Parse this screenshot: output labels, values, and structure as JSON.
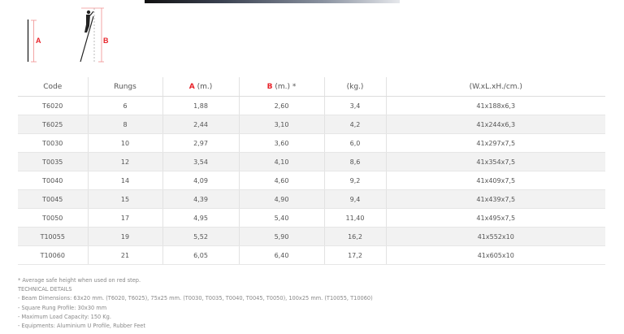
{
  "diagram": {
    "label_a": "A",
    "label_b": "B"
  },
  "table": {
    "headers": {
      "code": "Code",
      "rungs": "Rungs",
      "a_letter": "A",
      "a_unit": " (m.)",
      "b_letter": "B",
      "b_unit": " (m.) *",
      "weight": "(kg.)",
      "dims": "(W.xL.xH./cm.)"
    },
    "rows": [
      [
        "T6020",
        "6",
        "1,88",
        "2,60",
        "3,4",
        "41x188x6,3"
      ],
      [
        "T6025",
        "8",
        "2,44",
        "3,10",
        "4,2",
        "41x244x6,3"
      ],
      [
        "T0030",
        "10",
        "2,97",
        "3,60",
        "6,0",
        "41x297x7,5"
      ],
      [
        "T0035",
        "12",
        "3,54",
        "4,10",
        "8,6",
        "41x354x7,5"
      ],
      [
        "T0040",
        "14",
        "4,09",
        "4,60",
        "9,2",
        "41x409x7,5"
      ],
      [
        "T0045",
        "15",
        "4,39",
        "4,90",
        "9,4",
        "41x439x7,5"
      ],
      [
        "T0050",
        "17",
        "4,95",
        "5,40",
        "11,40",
        "41x495x7,5"
      ],
      [
        "T10055",
        "19",
        "5,52",
        "5,90",
        "16,2",
        "41x552x10"
      ],
      [
        "T10060",
        "21",
        "6,05",
        "6,40",
        "17,2",
        "41x605x10"
      ]
    ]
  },
  "notes": [
    "* Average safe height when used on red step.",
    "TECHNICAL DETAILS",
    "- Beam Dimensions: 63x20 mm. (T6020, T6025), 75x25 mm. (T0030, T0035, T0040, T0045, T0050), 100x25 mm. (T10055, T10060)",
    "- Square Rung Profile: 30x30 mm",
    "- Maximum Load Capacity: 150 Kg.",
    "- Equipments: Aluminium U Profile, Rubber Feet"
  ],
  "colors": {
    "accent": "#e8232a",
    "stripe": "#f2f2f2"
  }
}
